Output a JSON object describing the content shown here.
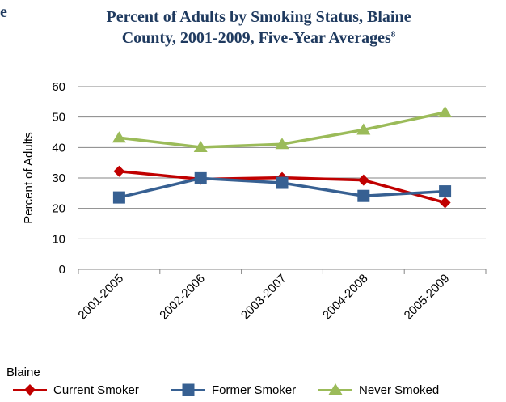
{
  "header": {
    "stray_mark": "e",
    "title_line1": "Percent of Adults by Smoking Status, Blaine",
    "title_line2": "County, 2001-2009, Five-Year Averages",
    "title_superscript": "8"
  },
  "chart_data": {
    "type": "line",
    "title": "Percent of Adults by Smoking Status, Blaine County, 2001-2009, Five-Year Averages",
    "xlabel": "",
    "ylabel": "Percent of Adults",
    "ylim": [
      0,
      60
    ],
    "yticks": [
      "0",
      "10",
      "20",
      "30",
      "40",
      "50",
      "60"
    ],
    "grid": "horizontal",
    "categories": [
      "2001-2005",
      "2002-2006",
      "2003-2007",
      "2004-2008",
      "2005-2009"
    ],
    "legend_title": "Blaine",
    "legend_position": "bottom",
    "series": [
      {
        "name": "Current Smoker",
        "values": [
          32.2,
          29.6,
          30.1,
          29.3,
          21.9
        ],
        "color": "#c00000",
        "marker": "diamond"
      },
      {
        "name": "Former Smoker",
        "values": [
          23.6,
          29.9,
          28.4,
          24.1,
          25.6
        ],
        "color": "#376092",
        "marker": "square"
      },
      {
        "name": "Never Smoked",
        "values": [
          43.2,
          40.1,
          41.1,
          45.8,
          51.5
        ],
        "color": "#9bbb59",
        "marker": "triangle"
      }
    ]
  }
}
